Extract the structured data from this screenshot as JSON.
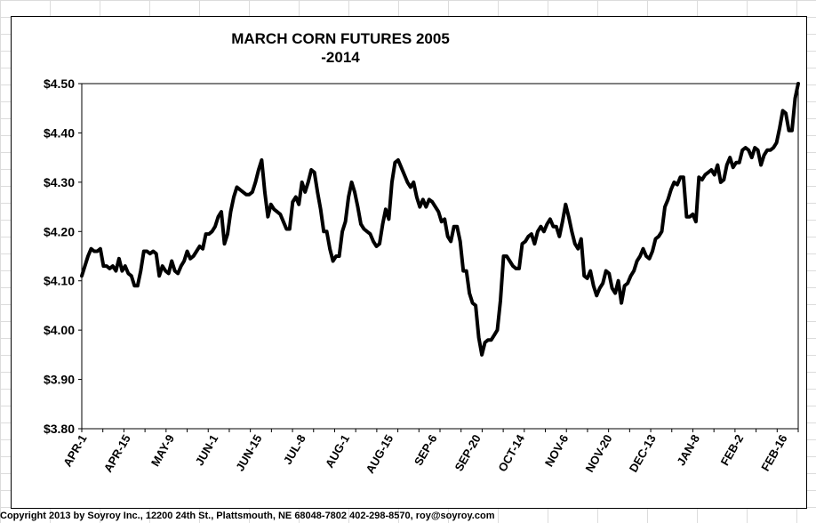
{
  "chart_data": {
    "type": "line",
    "title_line1": "MARCH CORN FUTURES  2005",
    "title_line2": "-2014",
    "xlabel": "",
    "ylabel": "",
    "ylim": [
      3.8,
      4.5
    ],
    "grid": false,
    "yticks": [
      "$3.80",
      "$3.90",
      "$4.00",
      "$4.10",
      "$4.20",
      "$4.30",
      "$4.40",
      "$4.50"
    ],
    "xticks": [
      "APR-1",
      "APR-15",
      "MAY-9",
      "JUN-1",
      "JUN-15",
      "JUL-8",
      "AUG-1",
      "AUG-15",
      "SEP-6",
      "SEP-20",
      "OCT-14",
      "NOV-6",
      "NOV-20",
      "DEC-13",
      "JAN-8",
      "FEB-2",
      "FEB-16"
    ],
    "line_color": "#000000",
    "series": [
      {
        "values": [
          4.11,
          4.13,
          4.15,
          4.165,
          4.16,
          4.16,
          4.165,
          4.13,
          4.13,
          4.125,
          4.13,
          4.12,
          4.145,
          4.12,
          4.13,
          4.115,
          4.11,
          4.09,
          4.09,
          4.12,
          4.16,
          4.16,
          4.155,
          4.16,
          4.155,
          4.11,
          4.13,
          4.12,
          4.115,
          4.14,
          4.12,
          4.115,
          4.13,
          4.14,
          4.16,
          4.145,
          4.15,
          4.16,
          4.17,
          4.165,
          4.195,
          4.195,
          4.2,
          4.21,
          4.23,
          4.24,
          4.175,
          4.195,
          4.24,
          4.27,
          4.29,
          4.285,
          4.28,
          4.275,
          4.275,
          4.28,
          4.3,
          4.325,
          4.345,
          4.28,
          4.23,
          4.255,
          4.245,
          4.24,
          4.235,
          4.22,
          4.205,
          4.205,
          4.26,
          4.27,
          4.255,
          4.3,
          4.28,
          4.3,
          4.325,
          4.32,
          4.28,
          4.245,
          4.2,
          4.2,
          4.165,
          4.14,
          4.15,
          4.15,
          4.2,
          4.22,
          4.27,
          4.3,
          4.28,
          4.25,
          4.215,
          4.205,
          4.2,
          4.195,
          4.18,
          4.17,
          4.175,
          4.215,
          4.245,
          4.225,
          4.3,
          4.34,
          4.345,
          4.33,
          4.315,
          4.3,
          4.29,
          4.3,
          4.27,
          4.25,
          4.265,
          4.25,
          4.265,
          4.26,
          4.25,
          4.24,
          4.22,
          4.225,
          4.19,
          4.18,
          4.21,
          4.21,
          4.18,
          4.12,
          4.12,
          4.075,
          4.055,
          4.05,
          3.985,
          3.95,
          3.975,
          3.98,
          3.98,
          3.99,
          4.0,
          4.06,
          4.15,
          4.15,
          4.14,
          4.13,
          4.125,
          4.125,
          4.175,
          4.18,
          4.19,
          4.195,
          4.175,
          4.2,
          4.21,
          4.2,
          4.215,
          4.225,
          4.21,
          4.21,
          4.19,
          4.22,
          4.255,
          4.23,
          4.2,
          4.175,
          4.165,
          4.185,
          4.11,
          4.105,
          4.12,
          4.09,
          4.07,
          4.085,
          4.095,
          4.12,
          4.115,
          4.085,
          4.075,
          4.1,
          4.055,
          4.09,
          4.095,
          4.11,
          4.12,
          4.14,
          4.15,
          4.165,
          4.15,
          4.145,
          4.16,
          4.185,
          4.19,
          4.2,
          4.25,
          4.265,
          4.285,
          4.3,
          4.295,
          4.31,
          4.31,
          4.23,
          4.23,
          4.235,
          4.22,
          4.31,
          4.305,
          4.315,
          4.32,
          4.325,
          4.315,
          4.335,
          4.3,
          4.305,
          4.335,
          4.35,
          4.33,
          4.34,
          4.34,
          4.365,
          4.37,
          4.365,
          4.35,
          4.37,
          4.365,
          4.335,
          4.355,
          4.365,
          4.365,
          4.37,
          4.38,
          4.41,
          4.445,
          4.44,
          4.405,
          4.405,
          4.47,
          4.5
        ]
      }
    ]
  },
  "footer": {
    "copyright": "Copyright 2013 by Soyroy Inc., 12200 24th St., Plattsmouth, NE 68048-7802 402-298-8570, roy@soyroy.com"
  }
}
